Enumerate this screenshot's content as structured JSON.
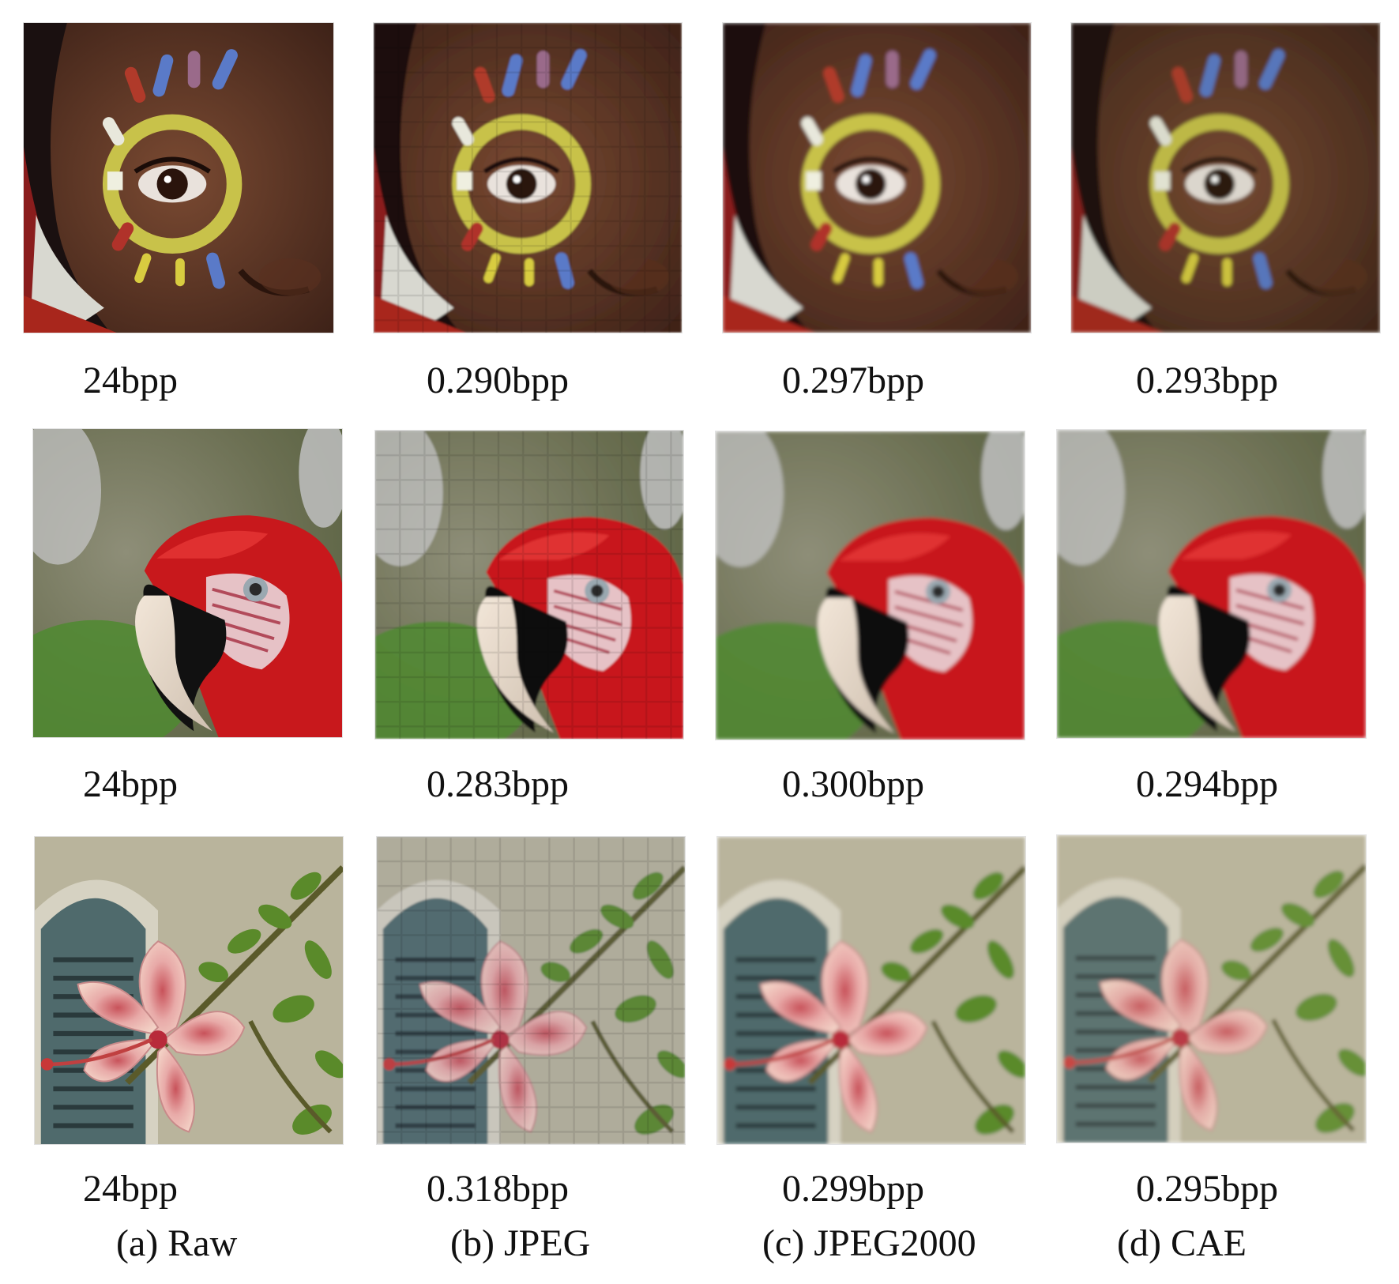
{
  "figure": {
    "rows": [
      {
        "subject": "child-face",
        "labels": [
          "24bpp",
          "0.290bpp",
          "0.297bpp",
          "0.293bpp"
        ]
      },
      {
        "subject": "parrot",
        "labels": [
          "24bpp",
          "0.283bpp",
          "0.300bpp",
          "0.294bpp"
        ]
      },
      {
        "subject": "hibiscus-flower",
        "labels": [
          "24bpp",
          "0.318bpp",
          "0.299bpp",
          "0.295bpp"
        ]
      }
    ],
    "subcaptions": [
      "(a) Raw",
      "(b) JPEG",
      "(c) JPEG2000",
      "(d) CAE"
    ]
  }
}
